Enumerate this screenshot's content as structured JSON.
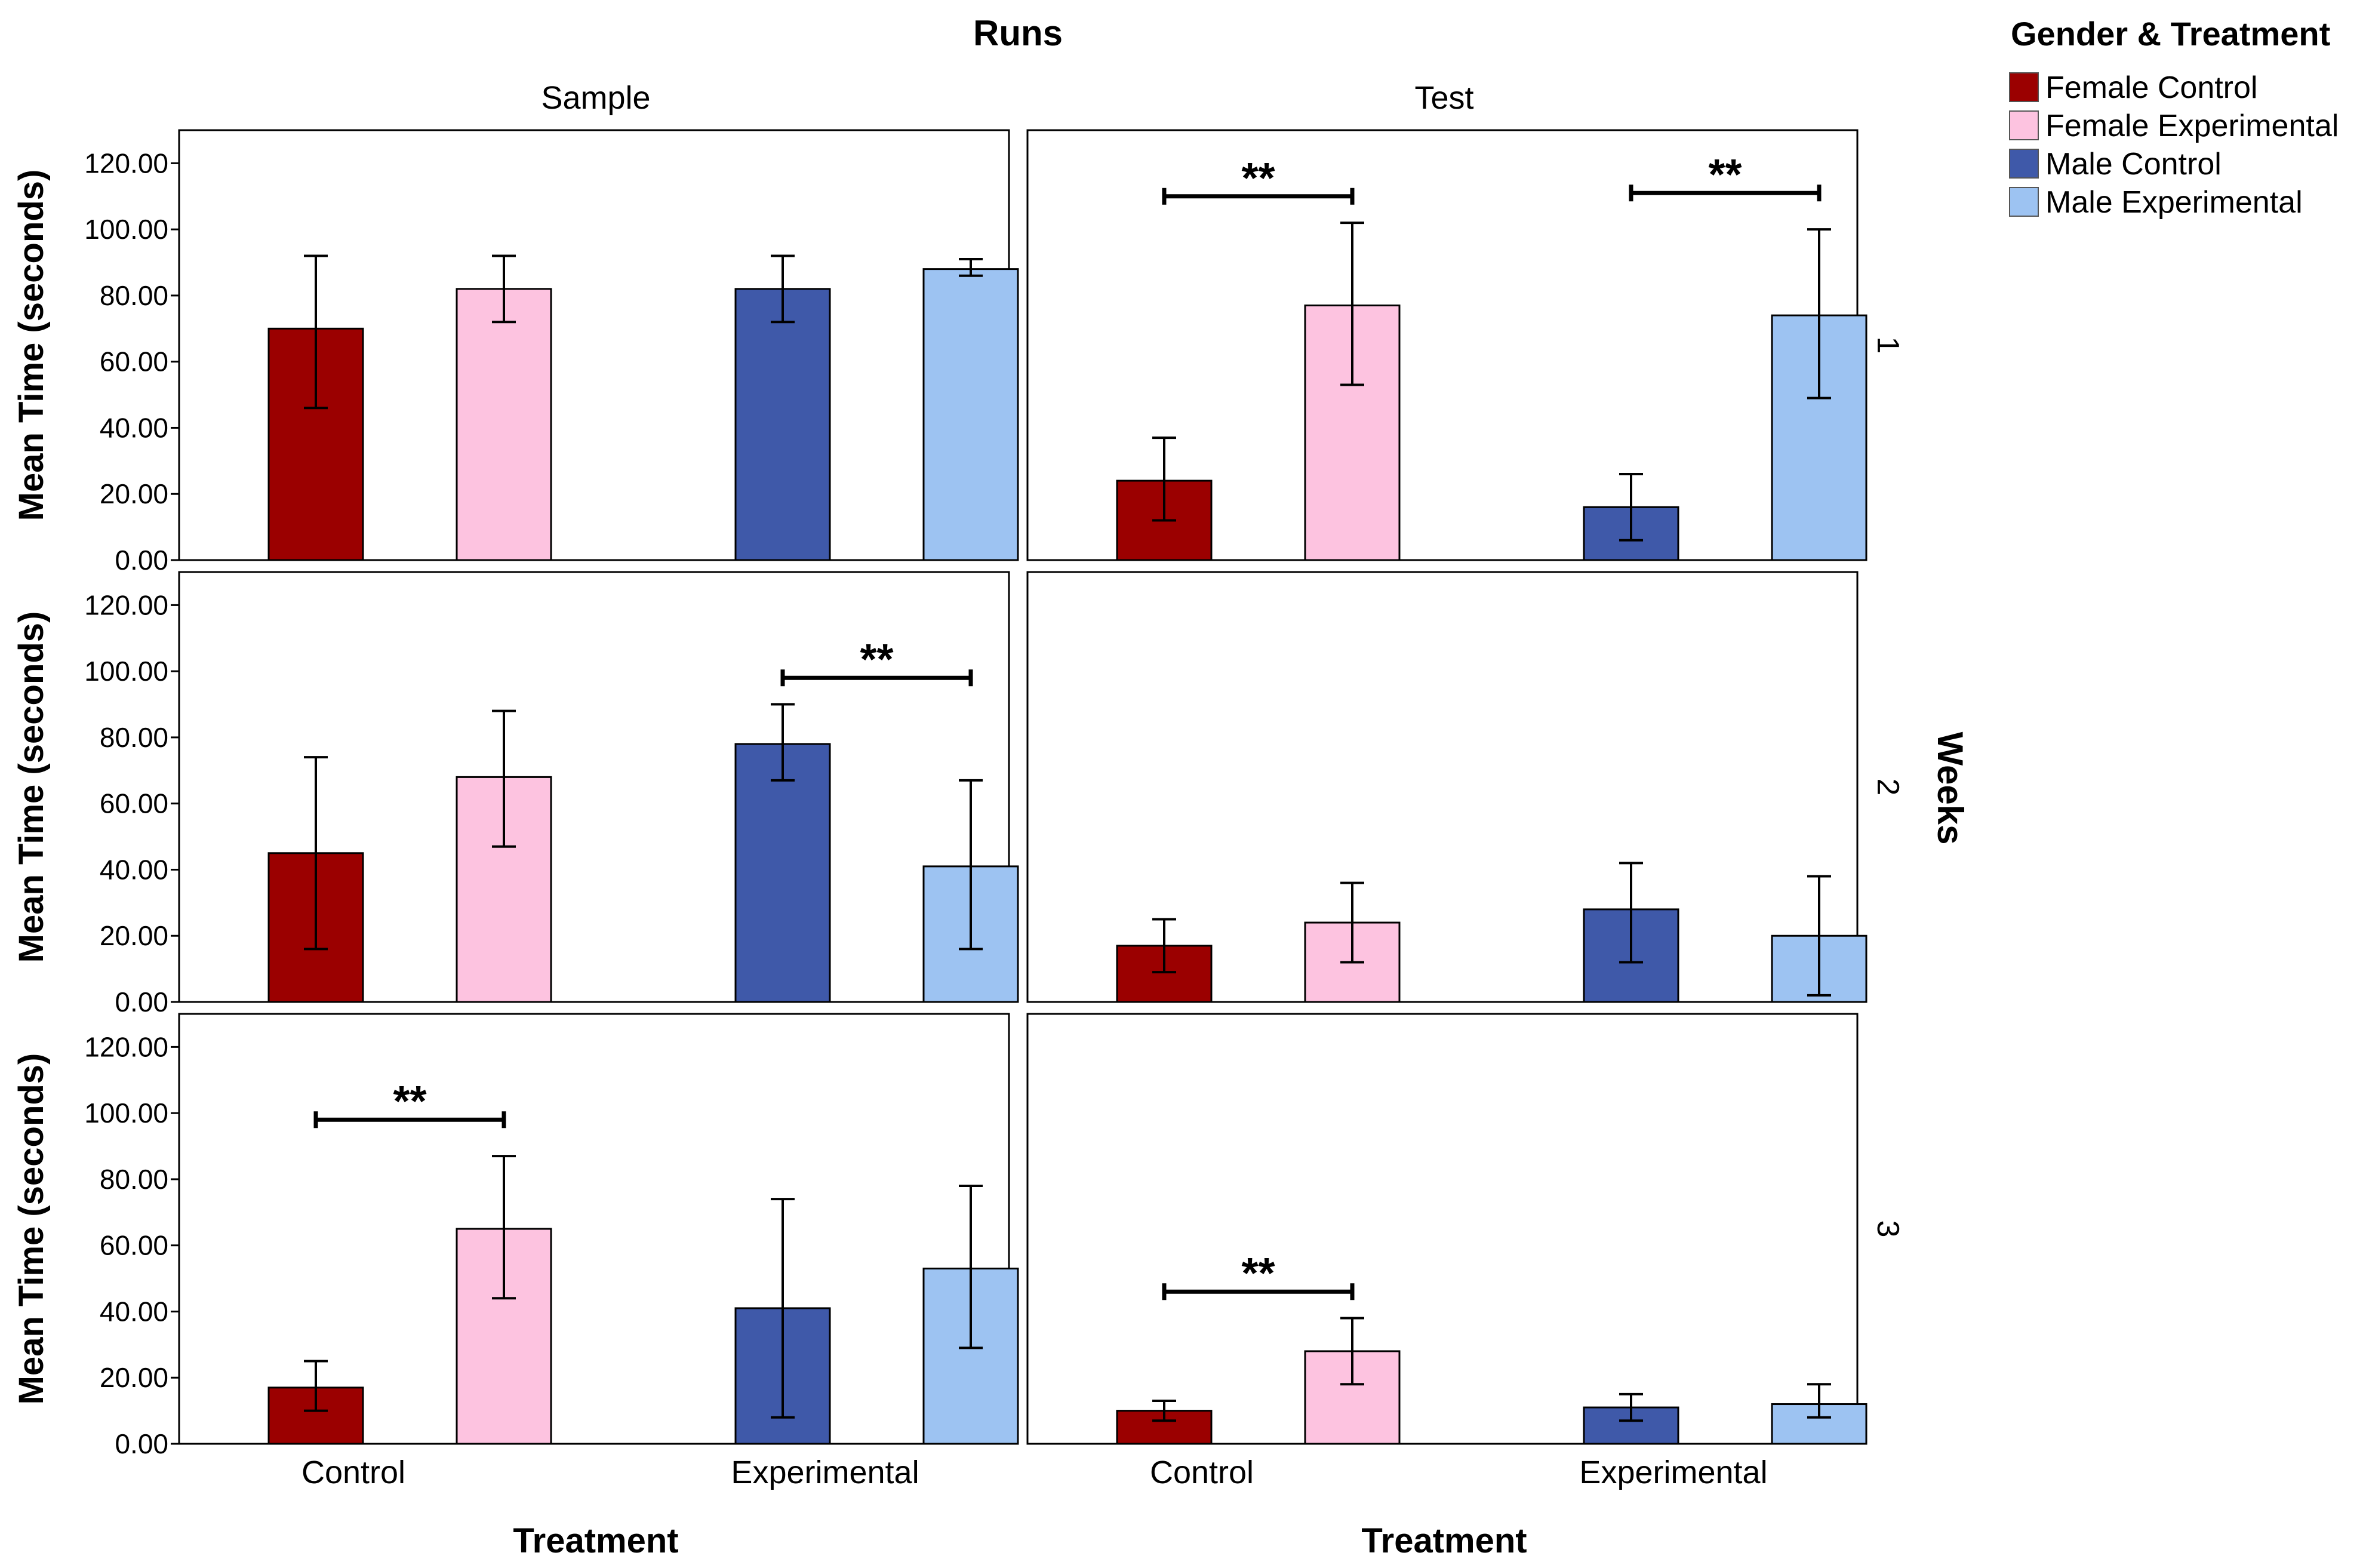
{
  "chart_data": {
    "type": "bar",
    "title": "Runs",
    "column_titles": [
      "Sample",
      "Test"
    ],
    "row_axis_label": "Weeks",
    "row_titles": [
      "1",
      "2",
      "3"
    ],
    "ylabel": "Mean Time (seconds)",
    "xlabel": "Treatment",
    "categories": [
      "Control",
      "Experimental"
    ],
    "ylim": [
      0,
      130
    ],
    "yticks": [
      "0.00",
      "20.00",
      "40.00",
      "60.00",
      "80.00",
      "100.00",
      "120.00"
    ],
    "legend": {
      "title": "Gender & Treatment",
      "placement": "top-right",
      "entries": [
        {
          "label": "Female Control",
          "color": "#9b0000"
        },
        {
          "label": "Female Experimental",
          "color": "#fdc3e0"
        },
        {
          "label": "Male Control",
          "color": "#3f59a9"
        },
        {
          "label": "Male Experimental",
          "color": "#9dc3f2"
        }
      ]
    },
    "significance_marker": "**",
    "panels": [
      {
        "week": "1",
        "run": "Sample",
        "values": [
          {
            "v": 70,
            "lo": 46,
            "hi": 92
          },
          {
            "v": 82,
            "lo": 72,
            "hi": 92
          },
          {
            "v": 82,
            "lo": 72,
            "hi": 92
          },
          {
            "v": 88,
            "lo": 86,
            "hi": 91
          }
        ],
        "sig": []
      },
      {
        "week": "1",
        "run": "Test",
        "values": [
          {
            "v": 24,
            "lo": 12,
            "hi": 37
          },
          {
            "v": 77,
            "lo": 53,
            "hi": 102
          },
          {
            "v": 16,
            "lo": 6,
            "hi": 26
          },
          {
            "v": 74,
            "lo": 49,
            "hi": 100
          }
        ],
        "sig": [
          {
            "from": 0,
            "to": 1,
            "y": 110
          },
          {
            "from": 2,
            "to": 3,
            "y": 111
          }
        ]
      },
      {
        "week": "2",
        "run": "Sample",
        "values": [
          {
            "v": 45,
            "lo": 16,
            "hi": 74
          },
          {
            "v": 68,
            "lo": 47,
            "hi": 88
          },
          {
            "v": 78,
            "lo": 67,
            "hi": 90
          },
          {
            "v": 41,
            "lo": 16,
            "hi": 67
          }
        ],
        "sig": [
          {
            "from": 2,
            "to": 3,
            "y": 98
          }
        ]
      },
      {
        "week": "2",
        "run": "Test",
        "values": [
          {
            "v": 17,
            "lo": 9,
            "hi": 25
          },
          {
            "v": 24,
            "lo": 12,
            "hi": 36
          },
          {
            "v": 28,
            "lo": 12,
            "hi": 42
          },
          {
            "v": 20,
            "lo": 2,
            "hi": 38
          }
        ],
        "sig": []
      },
      {
        "week": "3",
        "run": "Sample",
        "values": [
          {
            "v": 17,
            "lo": 10,
            "hi": 25
          },
          {
            "v": 65,
            "lo": 44,
            "hi": 87
          },
          {
            "v": 41,
            "lo": 8,
            "hi": 74
          },
          {
            "v": 53,
            "lo": 29,
            "hi": 78
          }
        ],
        "sig": [
          {
            "from": 0,
            "to": 1,
            "y": 98
          }
        ]
      },
      {
        "week": "3",
        "run": "Test",
        "values": [
          {
            "v": 10,
            "lo": 7,
            "hi": 13
          },
          {
            "v": 28,
            "lo": 18,
            "hi": 38
          },
          {
            "v": 11,
            "lo": 7,
            "hi": 15
          },
          {
            "v": 12,
            "lo": 8,
            "hi": 18
          }
        ],
        "sig": [
          {
            "from": 0,
            "to": 1,
            "y": 46
          }
        ]
      }
    ]
  }
}
